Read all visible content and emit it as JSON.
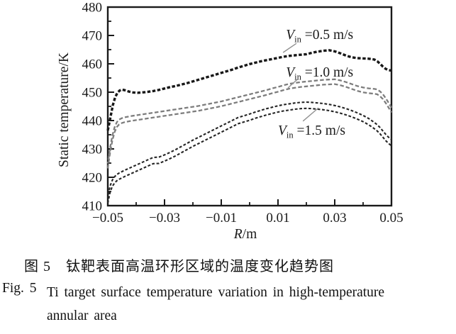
{
  "figure": {
    "caption_zh": "图 5　钛靶表面高温环形区域的温度变化趋势图",
    "caption_fig_label": "Fig. 5",
    "caption_en_line1": "Ti target surface temperature variation in high-temperature",
    "caption_en_line2": "annular area"
  },
  "colors": {
    "frame": "#1a1a1a",
    "text": "#1a1a1a",
    "leader_line": "#919191"
  },
  "chart_data": {
    "type": "line",
    "title": "",
    "xlabel_italic": "R",
    "xlabel_rest": "/m",
    "ylabel": "Static temperature/K",
    "xlim": [
      -0.05,
      0.05
    ],
    "ylim": [
      410,
      480
    ],
    "grid": false,
    "legend_position": "none",
    "x_major_ticks": [
      -0.05,
      -0.03,
      -0.01,
      0.01,
      0.03,
      0.05
    ],
    "x_tick_labels": [
      "−0.05",
      "−0.03",
      "−0.01",
      "0.01",
      "0.03",
      "0.05"
    ],
    "x_minor_ticks": [
      -0.04,
      -0.02,
      0,
      0.02,
      0.04
    ],
    "y_major_ticks": [
      410,
      420,
      430,
      440,
      450,
      460,
      470,
      480
    ],
    "y_tick_labels": [
      "410",
      "420",
      "430",
      "440",
      "450",
      "460",
      "470",
      "480"
    ],
    "y_minor_ticks": [
      415,
      425,
      435,
      445,
      455,
      465,
      475
    ],
    "series": [
      {
        "name": "Vin = 0.5 m/s",
        "color": "#181818",
        "track_offset_K": 0,
        "points": [
          [
            -0.05,
            436.5
          ],
          [
            -0.049,
            441.5
          ],
          [
            -0.0482,
            445.5
          ],
          [
            -0.0474,
            448.2
          ],
          [
            -0.0466,
            449.8
          ],
          [
            -0.0458,
            450.6
          ],
          [
            -0.045,
            450.9
          ],
          [
            -0.044,
            450.7
          ],
          [
            -0.0425,
            450.2
          ],
          [
            -0.041,
            449.9
          ],
          [
            -0.0395,
            449.8
          ],
          [
            -0.038,
            449.9
          ],
          [
            -0.036,
            450.1
          ],
          [
            -0.034,
            450.4
          ],
          [
            -0.032,
            450.8
          ],
          [
            -0.03,
            451.3
          ],
          [
            -0.028,
            451.8
          ],
          [
            -0.026,
            452.2
          ],
          [
            -0.024,
            452.7
          ],
          [
            -0.022,
            453.2
          ],
          [
            -0.02,
            453.8
          ],
          [
            -0.018,
            454.4
          ],
          [
            -0.016,
            455.0
          ],
          [
            -0.014,
            455.6
          ],
          [
            -0.012,
            456.2
          ],
          [
            -0.01,
            456.8
          ],
          [
            -0.008,
            457.4
          ],
          [
            -0.006,
            458.0
          ],
          [
            -0.004,
            458.7
          ],
          [
            -0.002,
            459.3
          ],
          [
            0.0,
            459.9
          ],
          [
            0.002,
            460.4
          ],
          [
            0.004,
            460.9
          ],
          [
            0.006,
            461.3
          ],
          [
            0.008,
            461.7
          ],
          [
            0.01,
            462.1
          ],
          [
            0.012,
            462.5
          ],
          [
            0.014,
            462.8
          ],
          [
            0.016,
            463.0
          ],
          [
            0.018,
            463.2
          ],
          [
            0.02,
            463.4
          ],
          [
            0.022,
            463.9
          ],
          [
            0.024,
            464.3
          ],
          [
            0.026,
            464.6
          ],
          [
            0.028,
            464.8
          ],
          [
            0.03,
            464.4
          ],
          [
            0.032,
            463.7
          ],
          [
            0.034,
            462.9
          ],
          [
            0.036,
            462.3
          ],
          [
            0.038,
            462.0
          ],
          [
            0.04,
            461.9
          ],
          [
            0.042,
            461.8
          ],
          [
            0.044,
            461.5
          ],
          [
            0.045,
            460.9
          ],
          [
            0.046,
            460.0
          ],
          [
            0.047,
            459.0
          ],
          [
            0.048,
            458.2
          ],
          [
            0.049,
            457.8
          ],
          [
            0.05,
            457.6
          ]
        ]
      },
      {
        "name": "Vin = 1.0 m/s",
        "color": "#7d7d7d",
        "track_offset_K": 0.85,
        "points": [
          [
            -0.05,
            424.0
          ],
          [
            -0.0492,
            429.5
          ],
          [
            -0.0484,
            433.8
          ],
          [
            -0.0476,
            436.8
          ],
          [
            -0.0468,
            438.6
          ],
          [
            -0.046,
            439.5
          ],
          [
            -0.045,
            440.0
          ],
          [
            -0.044,
            440.3
          ],
          [
            -0.042,
            440.7
          ],
          [
            -0.04,
            441.0
          ],
          [
            -0.038,
            441.3
          ],
          [
            -0.036,
            441.6
          ],
          [
            -0.034,
            441.9
          ],
          [
            -0.032,
            442.2
          ],
          [
            -0.03,
            442.5
          ],
          [
            -0.028,
            442.8
          ],
          [
            -0.026,
            443.1
          ],
          [
            -0.024,
            443.4
          ],
          [
            -0.022,
            443.7
          ],
          [
            -0.02,
            444.0
          ],
          [
            -0.018,
            444.3
          ],
          [
            -0.016,
            444.7
          ],
          [
            -0.014,
            445.1
          ],
          [
            -0.012,
            445.5
          ],
          [
            -0.01,
            445.9
          ],
          [
            -0.008,
            446.4
          ],
          [
            -0.006,
            446.9
          ],
          [
            -0.004,
            447.4
          ],
          [
            -0.002,
            447.9
          ],
          [
            0.0,
            448.4
          ],
          [
            0.002,
            448.9
          ],
          [
            0.004,
            449.4
          ],
          [
            0.006,
            449.9
          ],
          [
            0.008,
            450.5
          ],
          [
            0.01,
            451.0
          ],
          [
            0.012,
            451.6
          ],
          [
            0.014,
            452.1
          ],
          [
            0.016,
            452.4
          ],
          [
            0.018,
            452.7
          ],
          [
            0.02,
            452.9
          ],
          [
            0.022,
            453.1
          ],
          [
            0.024,
            453.3
          ],
          [
            0.026,
            453.5
          ],
          [
            0.028,
            453.6
          ],
          [
            0.03,
            453.7
          ],
          [
            0.032,
            453.3
          ],
          [
            0.034,
            452.7
          ],
          [
            0.036,
            452.0
          ],
          [
            0.038,
            451.3
          ],
          [
            0.04,
            450.8
          ],
          [
            0.042,
            450.5
          ],
          [
            0.044,
            450.3
          ],
          [
            0.045,
            450.1
          ],
          [
            0.046,
            449.4
          ],
          [
            0.047,
            448.4
          ],
          [
            0.048,
            447.0
          ],
          [
            0.049,
            445.4
          ],
          [
            0.05,
            443.7
          ]
        ]
      },
      {
        "name": "Vin = 1.5 m/s",
        "color": "#242424",
        "track_offset_K": 1.1,
        "points": [
          [
            -0.05,
            412.0
          ],
          [
            -0.0492,
            415.8
          ],
          [
            -0.0484,
            417.9
          ],
          [
            -0.0476,
            419.1
          ],
          [
            -0.0468,
            419.9
          ],
          [
            -0.046,
            420.4
          ],
          [
            -0.045,
            420.9
          ],
          [
            -0.044,
            421.4
          ],
          [
            -0.042,
            422.3
          ],
          [
            -0.04,
            423.2
          ],
          [
            -0.038,
            424.1
          ],
          [
            -0.036,
            425.0
          ],
          [
            -0.034,
            425.9
          ],
          [
            -0.032,
            426.0
          ],
          [
            -0.03,
            426.8
          ],
          [
            -0.028,
            427.7
          ],
          [
            -0.026,
            428.7
          ],
          [
            -0.024,
            429.8
          ],
          [
            -0.022,
            430.9
          ],
          [
            -0.02,
            432.0
          ],
          [
            -0.018,
            433.0
          ],
          [
            -0.016,
            434.0
          ],
          [
            -0.014,
            435.0
          ],
          [
            -0.012,
            436.0
          ],
          [
            -0.01,
            437.0
          ],
          [
            -0.008,
            438.0
          ],
          [
            -0.006,
            439.0
          ],
          [
            -0.004,
            440.0
          ],
          [
            -0.002,
            440.6
          ],
          [
            0.0,
            441.2
          ],
          [
            0.002,
            441.9
          ],
          [
            0.004,
            442.5
          ],
          [
            0.006,
            443.1
          ],
          [
            0.008,
            443.6
          ],
          [
            0.01,
            444.1
          ],
          [
            0.012,
            444.5
          ],
          [
            0.014,
            444.8
          ],
          [
            0.016,
            445.1
          ],
          [
            0.018,
            445.3
          ],
          [
            0.02,
            445.4
          ],
          [
            0.022,
            445.3
          ],
          [
            0.024,
            445.1
          ],
          [
            0.026,
            444.9
          ],
          [
            0.028,
            444.6
          ],
          [
            0.03,
            444.2
          ],
          [
            0.032,
            443.7
          ],
          [
            0.034,
            443.1
          ],
          [
            0.036,
            442.4
          ],
          [
            0.038,
            441.6
          ],
          [
            0.04,
            440.7
          ],
          [
            0.042,
            439.6
          ],
          [
            0.044,
            438.2
          ],
          [
            0.045,
            437.4
          ],
          [
            0.046,
            436.4
          ],
          [
            0.047,
            435.2
          ],
          [
            0.048,
            434.0
          ],
          [
            0.049,
            433.0
          ],
          [
            0.05,
            432.2
          ]
        ]
      }
    ],
    "annotations": [
      {
        "symbol": "V",
        "subscript": "in",
        "rest": " =0.5 m/s",
        "x": 0.0128,
        "y": 468.7,
        "leader": {
          "x1": 0.0165,
          "y1": 467.2,
          "x2": 0.0118,
          "y2": 464.0
        }
      },
      {
        "symbol": "V",
        "subscript": "in",
        "rest": " =1.0 m/s",
        "x": 0.0128,
        "y": 455.5,
        "leader": {
          "x1": 0.0168,
          "y1": 454.5,
          "x2": 0.0135,
          "y2": 451.5
        }
      },
      {
        "symbol": "V",
        "subscript": "in",
        "rest": " =1.5 m/s",
        "x": 0.01,
        "y": 435.0,
        "leader": {
          "x1": 0.0188,
          "y1": 439.8,
          "x2": 0.0243,
          "y2": 444.5
        }
      }
    ]
  }
}
